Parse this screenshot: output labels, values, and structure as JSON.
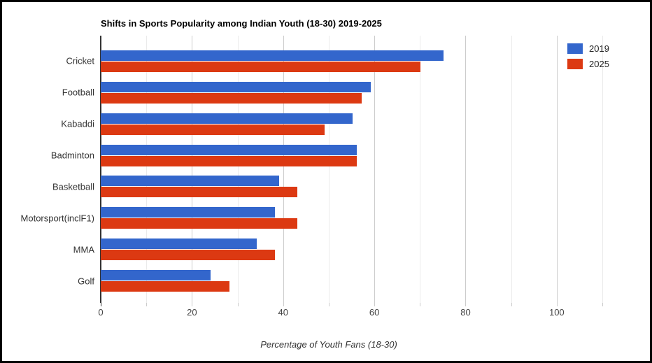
{
  "chart_data": {
    "type": "bar",
    "orientation": "horizontal",
    "title": "Shifts in Sports Popularity among Indian Youth (18-30) 2019-2025",
    "xlabel": "Percentage of Youth Fans (18-30)",
    "categories": [
      "Cricket",
      "Football",
      "Kabaddi",
      "Badminton",
      "Basketball",
      "Motorsport(inclF1)",
      "MMA",
      "Golf"
    ],
    "series": [
      {
        "name": "2019",
        "color": "#3366CC",
        "values": [
          75,
          59,
          55,
          56,
          39,
          38,
          34,
          24
        ]
      },
      {
        "name": "2025",
        "color": "#DC3912",
        "values": [
          70,
          57,
          49,
          56,
          43,
          43,
          38,
          28
        ]
      }
    ],
    "xlim": [
      0,
      110
    ],
    "x_ticks": [
      0,
      20,
      40,
      60,
      80,
      100
    ],
    "minor_tick_step": 10,
    "grid": true,
    "legend_position": "top-right",
    "colors": {
      "series_2019": "#3366CC",
      "series_2025": "#DC3912",
      "major_gridline": "#cccccc",
      "minor_gridline": "#ebebeb",
      "baseline": "#333333",
      "tick_label": "#444444",
      "category_label": "#333333",
      "background": "#ffffff",
      "frame_border": "#000000"
    }
  }
}
